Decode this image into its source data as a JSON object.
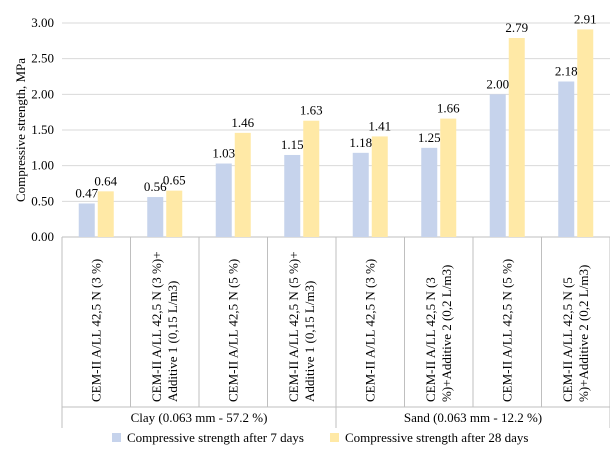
{
  "chart_data": {
    "type": "bar",
    "ylabel": "Compressive strength, MPa",
    "ylim": [
      0,
      3.0
    ],
    "yticks": [
      "0.00",
      "0.50",
      "1.00",
      "1.50",
      "2.00",
      "2.50",
      "3.00"
    ],
    "grid": true,
    "legend_position": "bottom",
    "categories": [
      {
        "lines": [
          "CEM-II A/LL 42,5 N (3 %)"
        ]
      },
      {
        "lines": [
          "CEM-II A/LL 42,5 N (3 %)+",
          "Additive 1 (0,15 L/m3)"
        ]
      },
      {
        "lines": [
          "CEM-II A/LL 42,5 N (5 %)"
        ]
      },
      {
        "lines": [
          "CEM-II A/LL 42,5 N (5 %)+",
          "Additive 1 (0,15 L/m3)"
        ]
      },
      {
        "lines": [
          "CEM-II A/LL 42,5 N (3 %)"
        ]
      },
      {
        "lines": [
          "CEM-II A/LL 42,5 N (3",
          "%)+Additive 2 (0,2 L/m3)"
        ]
      },
      {
        "lines": [
          "CEM-II A/LL 42,5 N (5 %)"
        ]
      },
      {
        "lines": [
          "CEM-II A/LL 42,5 N (5",
          "%)+Additive 2 (0,2 L/m3)"
        ]
      }
    ],
    "groups": [
      {
        "label": "Clay (0.063 mm - 57.2 %)",
        "span": 4
      },
      {
        "label": "Sand (0.063 mm  - 12.2 %)",
        "span": 4
      }
    ],
    "series": [
      {
        "name": "Compressive strength after 7 days",
        "color": "#C6D3EC",
        "values": [
          0.47,
          0.56,
          1.03,
          1.15,
          1.18,
          1.25,
          2.0,
          2.18
        ],
        "labels": [
          "0.47",
          "0.56",
          "1.03",
          "1.15",
          "1.18",
          "1.25",
          "2.00",
          "2.18"
        ]
      },
      {
        "name": "Compressive strength after 28 days",
        "color": "#FFE9A6",
        "values": [
          0.64,
          0.65,
          1.46,
          1.63,
          1.41,
          1.66,
          2.79,
          2.91
        ],
        "labels": [
          "0.64",
          "0.65",
          "1.46",
          "1.63",
          "1.41",
          "1.66",
          "2.79",
          "2.91"
        ]
      }
    ]
  }
}
